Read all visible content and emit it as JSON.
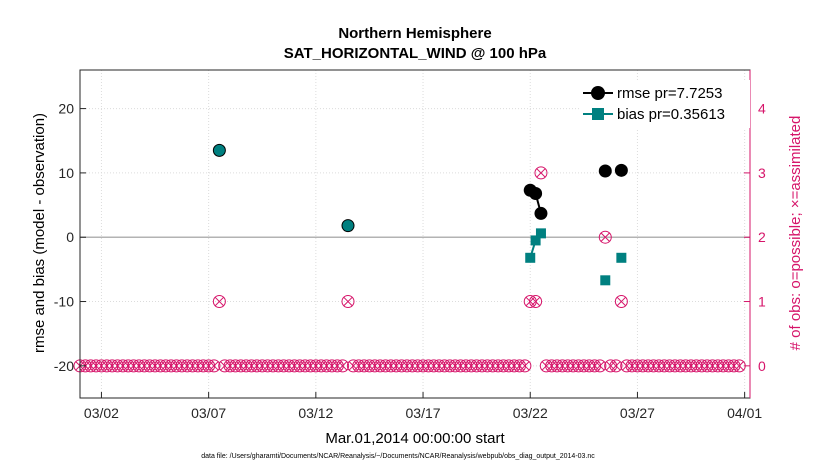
{
  "chart_data": {
    "type": "scatter",
    "title": "Northern Hemisphere",
    "subtitle": "SAT_HORIZONTAL_WIND @ 100 hPa",
    "xlabel": "Mar.01,2014 00:00:00 start",
    "ylabel_left": "rmse and bias (model - observation)",
    "ylabel_right": "# of obs: o=possible; ×=assimilated",
    "footnote": "data file: /Users/gharamti/Documents/NCAR/Reanalysis/~/Documents/NCAR/Reanalysis/webpub/obs_diag_output_2014-03.nc",
    "xlim": [
      0,
      31.25
    ],
    "ylim_left": [
      -25,
      26
    ],
    "ylim_right": [
      -0.5,
      4.6
    ],
    "x_ticks": [
      1,
      6,
      11,
      16,
      21,
      26,
      31
    ],
    "x_tick_labels": [
      "03/02",
      "03/07",
      "03/12",
      "03/17",
      "03/22",
      "03/27",
      "04/01"
    ],
    "y_ticks_left": [
      -20,
      -10,
      0,
      10,
      20
    ],
    "y_ticks_right": [
      0,
      1,
      2,
      3,
      4
    ],
    "colors": {
      "rmse": "#000000",
      "bias": "#008080",
      "obs": "#d6156a",
      "axis_right": "#d6156a",
      "zero_line": "#b3b3b3"
    },
    "series": [
      {
        "name": "rmse pr=7.7253",
        "segments": [
          [
            [
              6.5,
              13.5
            ]
          ],
          [
            [
              12.5,
              1.8
            ]
          ],
          [
            [
              21.0,
              7.3
            ],
            [
              21.25,
              6.8
            ],
            [
              21.5,
              3.7
            ]
          ],
          [
            [
              24.5,
              10.3
            ]
          ],
          [
            [
              25.25,
              10.4
            ]
          ]
        ]
      },
      {
        "name": "bias pr=0.35613",
        "segments": [
          [
            [
              6.5,
              13.5
            ]
          ],
          [
            [
              12.5,
              1.8
            ]
          ],
          [
            [
              21.0,
              -3.2
            ],
            [
              21.25,
              -0.5
            ],
            [
              21.5,
              0.6
            ]
          ],
          [
            [
              24.5,
              -6.7
            ]
          ],
          [
            [
              25.25,
              -3.2
            ]
          ]
        ]
      }
    ],
    "obs_counts": {
      "x_start": 0,
      "x_step": 0.25,
      "n": 124,
      "baseline": 0,
      "nonzero": [
        {
          "x": 6.5,
          "count": 1
        },
        {
          "x": 12.5,
          "count": 1
        },
        {
          "x": 21.0,
          "count": 1
        },
        {
          "x": 21.25,
          "count": 1
        },
        {
          "x": 21.5,
          "count": 3
        },
        {
          "x": 24.5,
          "count": 2
        },
        {
          "x": 25.25,
          "count": 1
        }
      ]
    }
  }
}
